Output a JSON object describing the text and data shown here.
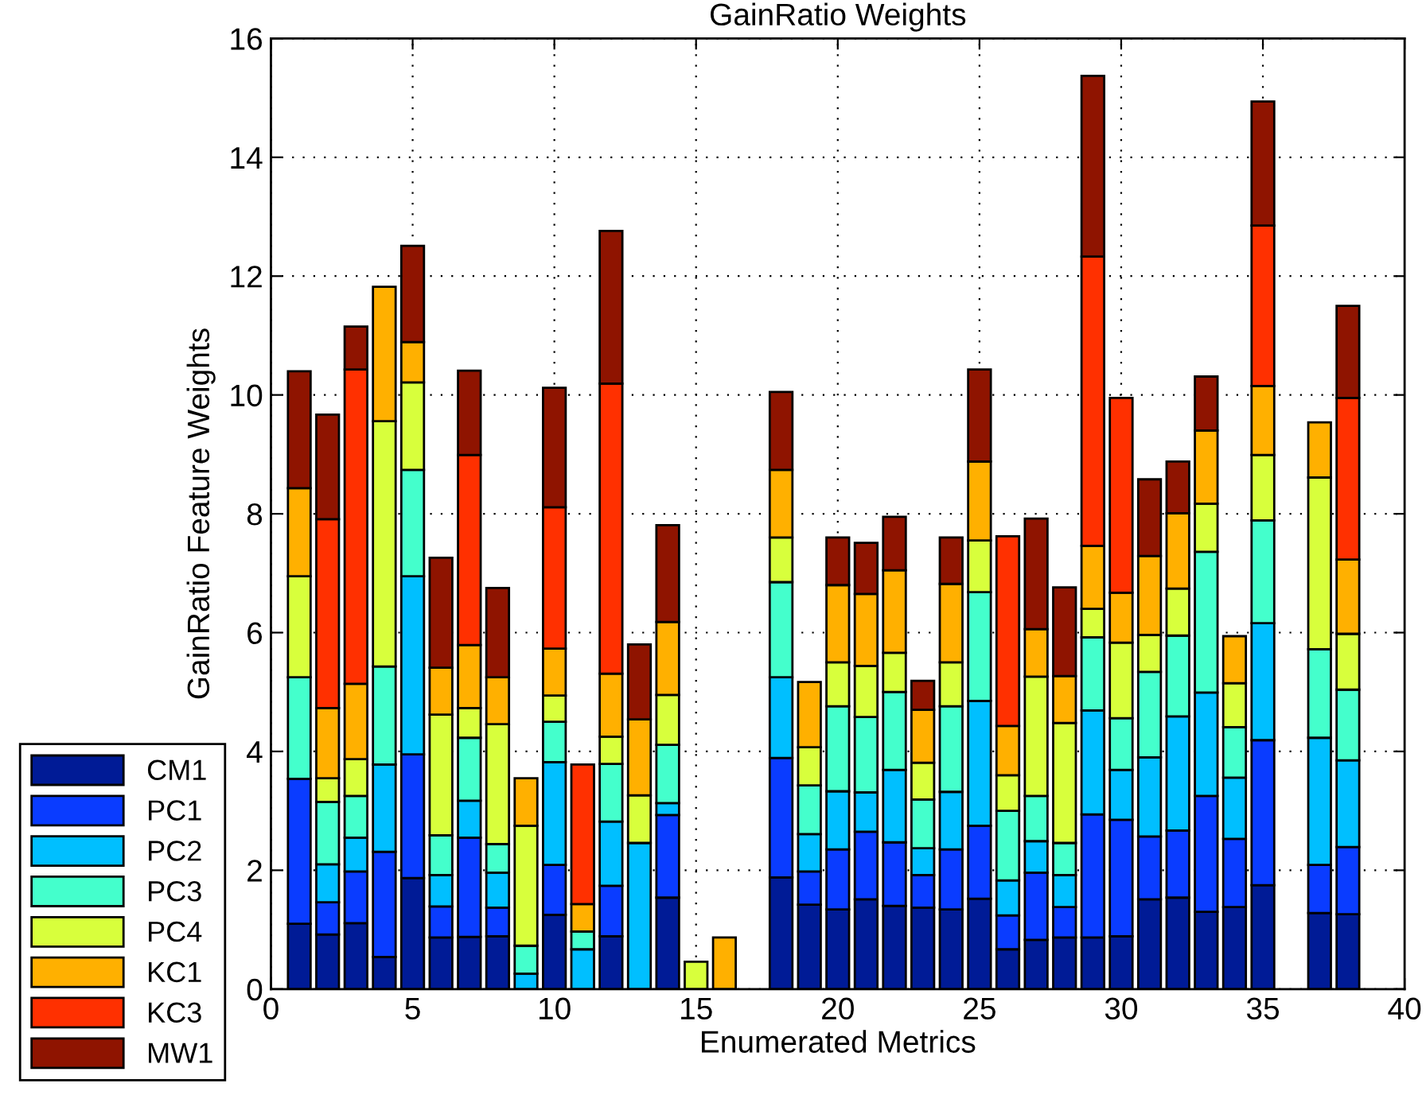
{
  "chart_data": {
    "type": "bar",
    "stacked": true,
    "title": "GainRatio Weights",
    "xlabel": "Enumerated Metrics",
    "ylabel": "GainRatio Feature Weights",
    "x": [
      1,
      2,
      3,
      4,
      5,
      6,
      7,
      8,
      9,
      10,
      11,
      12,
      13,
      14,
      15,
      16,
      17,
      18,
      19,
      20,
      21,
      22,
      23,
      24,
      25,
      26,
      27,
      28,
      29,
      30,
      31,
      32,
      33,
      34,
      35,
      36,
      37,
      38
    ],
    "series": [
      {
        "name": "CM1",
        "color": "#001b96",
        "values": [
          1.1,
          0.92,
          1.11,
          0.54,
          1.87,
          0.87,
          0.88,
          0.89,
          0,
          1.25,
          0,
          0.89,
          0,
          1.54,
          0,
          0,
          0,
          1.88,
          1.42,
          1.34,
          1.51,
          1.4,
          1.37,
          1.34,
          1.52,
          0.67,
          0.83,
          0.87,
          0.87,
          0.89,
          1.51,
          1.54,
          1.3,
          1.38,
          1.75,
          0,
          1.28,
          1.26
        ]
      },
      {
        "name": "PC1",
        "color": "#0a3cff",
        "values": [
          2.44,
          0.54,
          0.87,
          1.77,
          2.08,
          0.52,
          1.67,
          0.48,
          0,
          0.84,
          0,
          0.85,
          0,
          1.39,
          0,
          0,
          0,
          2.01,
          0.56,
          1.01,
          1.14,
          1.07,
          0.55,
          1.01,
          1.23,
          0.57,
          1.13,
          0.51,
          2.07,
          1.96,
          1.06,
          1.13,
          1.95,
          1.15,
          2.44,
          0,
          0.81,
          1.13
        ]
      },
      {
        "name": "PC2",
        "color": "#00bfff",
        "values": [
          0,
          0.64,
          0.57,
          1.47,
          3.0,
          0.53,
          0.62,
          0.59,
          0.26,
          1.73,
          0.67,
          1.08,
          2.46,
          0.2,
          0,
          0,
          0,
          1.36,
          0.63,
          0.98,
          0.66,
          1.22,
          0.45,
          0.97,
          2.1,
          0.59,
          0.53,
          0.54,
          1.75,
          0.84,
          1.33,
          1.92,
          1.74,
          1.03,
          1.97,
          0,
          2.14,
          1.46
        ]
      },
      {
        "name": "PC3",
        "color": "#44ffcc",
        "values": [
          1.71,
          1.05,
          0.7,
          1.65,
          1.79,
          0.67,
          1.06,
          0.48,
          0.47,
          0.68,
          0.3,
          0.97,
          0,
          0.98,
          0,
          0,
          0,
          1.6,
          0.82,
          1.43,
          1.27,
          1.31,
          0.82,
          1.44,
          1.83,
          1.17,
          0.76,
          0.54,
          1.23,
          0.87,
          1.44,
          1.36,
          2.37,
          0.85,
          1.73,
          0,
          1.49,
          1.19
        ]
      },
      {
        "name": "PC4",
        "color": "#d8ff3c",
        "values": [
          1.7,
          0.4,
          0.62,
          4.13,
          1.47,
          2.03,
          0.5,
          2.02,
          2.02,
          0.44,
          0,
          0.46,
          0.8,
          0.84,
          0.46,
          0,
          0,
          0.75,
          0.64,
          0.74,
          0.86,
          0.66,
          0.62,
          0.74,
          0.87,
          0.6,
          2.01,
          2.02,
          0.48,
          1.27,
          0.62,
          0.79,
          0.81,
          0.74,
          1.1,
          0,
          2.89,
          0.94
        ]
      },
      {
        "name": "KC1",
        "color": "#ffb000",
        "values": [
          1.48,
          1.18,
          1.27,
          2.26,
          0.68,
          0.79,
          1.06,
          0.79,
          0.8,
          0.79,
          0.46,
          1.06,
          1.28,
          1.23,
          0,
          0.87,
          0,
          1.14,
          1.1,
          1.3,
          1.21,
          1.39,
          0.89,
          1.32,
          1.33,
          0.83,
          0.8,
          0.79,
          1.06,
          0.84,
          1.33,
          1.27,
          1.23,
          0.79,
          1.16,
          0,
          0.93,
          1.25
        ]
      },
      {
        "name": "KC3",
        "color": "#ff3000",
        "values": [
          0,
          3.18,
          5.29,
          0,
          0,
          0,
          3.2,
          0,
          0,
          2.38,
          2.35,
          4.88,
          0,
          0,
          0,
          0,
          0,
          0,
          0,
          0,
          0,
          0,
          0,
          0,
          0,
          3.19,
          0,
          0,
          4.87,
          3.28,
          0,
          0,
          0,
          0,
          2.7,
          0,
          0,
          2.72
        ]
      },
      {
        "name": "MW1",
        "color": "#8f1400",
        "values": [
          1.97,
          1.76,
          0.72,
          0,
          1.62,
          1.85,
          1.42,
          1.5,
          0,
          2.01,
          0,
          2.57,
          1.26,
          1.63,
          0,
          0,
          0,
          1.31,
          0,
          0.8,
          0.86,
          0.9,
          0.49,
          0.78,
          1.55,
          0,
          1.86,
          1.49,
          3.04,
          0,
          1.29,
          0.87,
          0.91,
          0,
          2.09,
          0,
          0,
          1.55
        ]
      }
    ],
    "xlim": [
      0,
      40
    ],
    "xticks": [
      0,
      5,
      10,
      15,
      20,
      25,
      30,
      35,
      40
    ],
    "ylim": [
      0,
      16
    ],
    "yticks": [
      0,
      2,
      4,
      6,
      8,
      10,
      12,
      14,
      16
    ],
    "grid": true,
    "legend": "bottom left"
  }
}
